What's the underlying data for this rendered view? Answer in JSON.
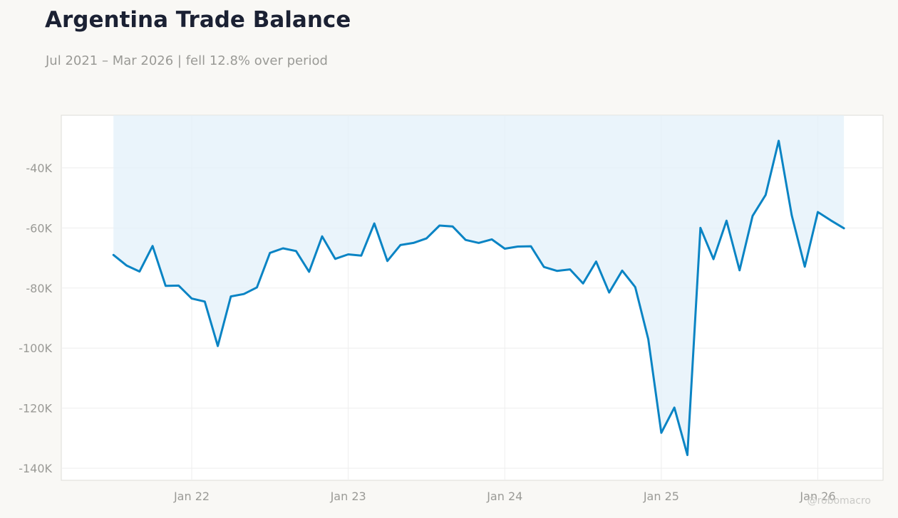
{
  "header": {
    "title": "Argentina Trade Balance",
    "subtitle": "Jul 2021 – Mar 2026 | fell 12.8% over period"
  },
  "watermark": "@robomacro",
  "colors": {
    "line": "#0a84c4",
    "fill": "#e3f0f9",
    "background": "#f9f8f5",
    "plot_background": "#ffffff",
    "grid": "#eeeeee",
    "title": "#1b2133",
    "muted": "#9a9a96"
  },
  "chart_data": {
    "type": "area",
    "title": "Argentina Trade Balance",
    "subtitle": "Jul 2021 – Mar 2026 | fell 12.8% over period",
    "xlabel": "",
    "ylabel": "",
    "grid": true,
    "legend": "none",
    "ylim": [
      -144000,
      -22500
    ],
    "xlim": [
      "2021-03",
      "2026-06"
    ],
    "x_ticks": [
      {
        "date": "2022-01",
        "label": "Jan 22"
      },
      {
        "date": "2023-01",
        "label": "Jan 23"
      },
      {
        "date": "2024-01",
        "label": "Jan 24"
      },
      {
        "date": "2025-01",
        "label": "Jan 25"
      },
      {
        "date": "2026-01",
        "label": "Jan 26"
      }
    ],
    "y_ticks": [
      {
        "value": -40000,
        "label": "-40K"
      },
      {
        "value": -60000,
        "label": "-60K"
      },
      {
        "value": -80000,
        "label": "-80K"
      },
      {
        "value": -100000,
        "label": "-100K"
      },
      {
        "value": -120000,
        "label": "-120K"
      },
      {
        "value": -140000,
        "label": "-140K"
      }
    ],
    "x": [
      "2021-07",
      "2021-08",
      "2021-09",
      "2021-10",
      "2021-11",
      "2021-12",
      "2022-01",
      "2022-02",
      "2022-03",
      "2022-04",
      "2022-05",
      "2022-06",
      "2022-07",
      "2022-08",
      "2022-09",
      "2022-10",
      "2022-11",
      "2022-12",
      "2023-01",
      "2023-02",
      "2023-03",
      "2023-04",
      "2023-05",
      "2023-06",
      "2023-07",
      "2023-08",
      "2023-09",
      "2023-10",
      "2023-11",
      "2023-12",
      "2024-01",
      "2024-02",
      "2024-03",
      "2024-04",
      "2024-05",
      "2024-06",
      "2024-07",
      "2024-08",
      "2024-09",
      "2024-10",
      "2024-11",
      "2024-12",
      "2025-01",
      "2025-02",
      "2025-03",
      "2025-04",
      "2025-05",
      "2025-06",
      "2025-07",
      "2025-08",
      "2025-09",
      "2025-10",
      "2025-11",
      "2025-12",
      "2026-01",
      "2026-02",
      "2026-03"
    ],
    "series": [
      {
        "values": [
          -69000,
          -72500,
          -74500,
          -66000,
          -79300,
          -79200,
          -83500,
          -84500,
          -99300,
          -82800,
          -82000,
          -79800,
          -68300,
          -66800,
          -67700,
          -74600,
          -62800,
          -70300,
          -68800,
          -69200,
          -58500,
          -71000,
          -65700,
          -65000,
          -63500,
          -59200,
          -59500,
          -64000,
          -65000,
          -63800,
          -66900,
          -66200,
          -66100,
          -73000,
          -74300,
          -73800,
          -78500,
          -71200,
          -81500,
          -74200,
          -79700,
          -97000,
          -128200,
          -119800,
          -135600,
          -60000,
          -70400,
          -57600,
          -74100,
          -56000,
          -49000,
          -31000,
          -55800,
          -72900,
          -54700,
          -57500,
          -60100
        ]
      }
    ]
  }
}
